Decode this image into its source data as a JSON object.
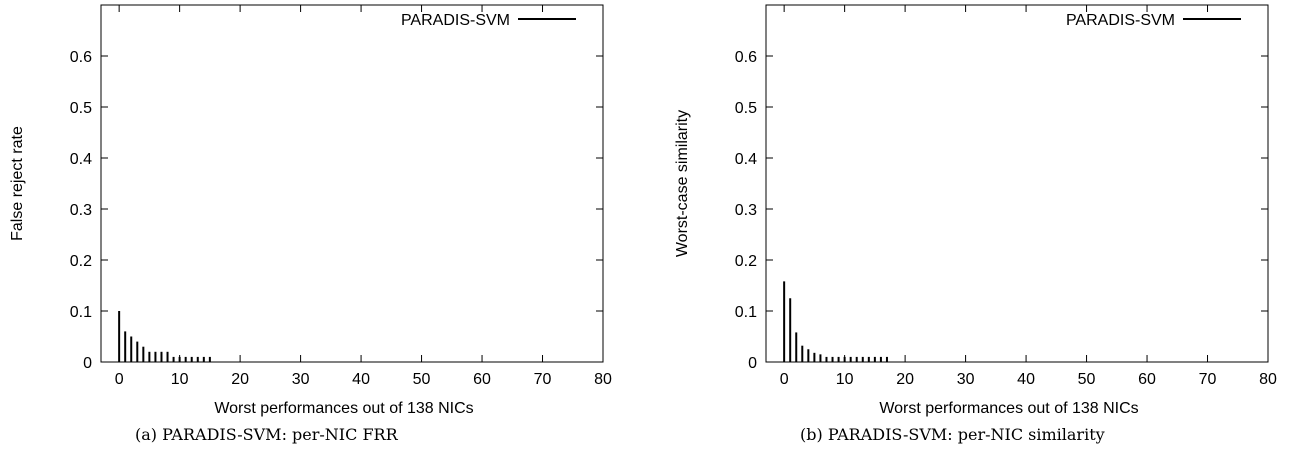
{
  "chart_data": [
    {
      "type": "bar",
      "xlabel": "Worst performances out of 138 NICs",
      "ylabel": "False reject rate",
      "caption": "(a) PARADIS-SVM: per-NIC FRR",
      "xlim": [
        -3,
        80
      ],
      "ylim": [
        0,
        0.7
      ],
      "xticks": [
        0,
        10,
        20,
        30,
        40,
        50,
        60,
        70,
        80
      ],
      "yticks": [
        0,
        0.1,
        0.2,
        0.3,
        0.4,
        0.5,
        0.6
      ],
      "legend_position": "top-right",
      "grid": false,
      "series": [
        {
          "name": "PARADIS-SVM",
          "x": [
            0,
            1,
            2,
            3,
            4,
            5,
            6,
            7,
            8,
            9,
            10,
            11,
            12,
            13,
            14,
            15
          ],
          "values": [
            0.1,
            0.06,
            0.05,
            0.04,
            0.03,
            0.02,
            0.02,
            0.02,
            0.02,
            0.01,
            0.01,
            0.01,
            0.01,
            0.01,
            0.01,
            0.01
          ]
        }
      ]
    },
    {
      "type": "bar",
      "xlabel": "Worst performances out of 138 NICs",
      "ylabel": "Worst-case similarity",
      "caption": "(b) PARADIS-SVM: per-NIC similarity",
      "xlim": [
        -3,
        80
      ],
      "ylim": [
        0,
        0.7
      ],
      "xticks": [
        0,
        10,
        20,
        30,
        40,
        50,
        60,
        70,
        80
      ],
      "yticks": [
        0,
        0.1,
        0.2,
        0.3,
        0.4,
        0.5,
        0.6
      ],
      "legend_position": "top-right",
      "grid": false,
      "series": [
        {
          "name": "PARADIS-SVM",
          "x": [
            0,
            1,
            2,
            3,
            4,
            5,
            6,
            7,
            8,
            9,
            10,
            11,
            12,
            13,
            14,
            15,
            16,
            17
          ],
          "values": [
            0.158,
            0.125,
            0.058,
            0.032,
            0.025,
            0.018,
            0.015,
            0.01,
            0.01,
            0.01,
            0.01,
            0.01,
            0.01,
            0.01,
            0.01,
            0.01,
            0.01,
            0.01
          ]
        }
      ]
    }
  ]
}
